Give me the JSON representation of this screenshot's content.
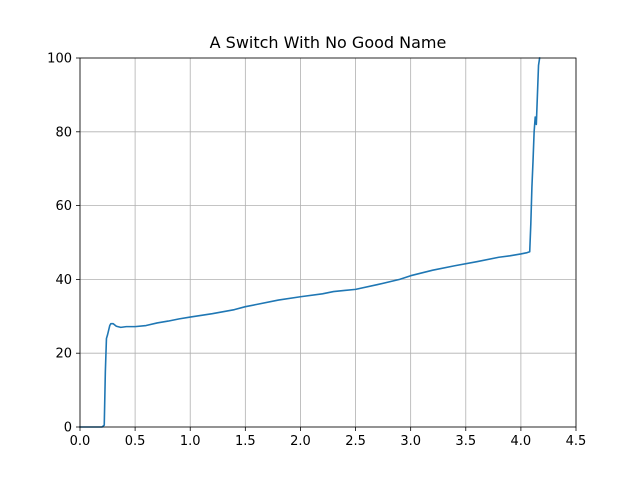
{
  "chart_data": {
    "type": "line",
    "title": "A Switch With No Good Name",
    "xlabel": "",
    "ylabel": "",
    "xlim": [
      0.0,
      4.5
    ],
    "ylim": [
      0,
      100
    ],
    "grid": true,
    "x_ticks": [
      "0.0",
      "0.5",
      "1.0",
      "1.5",
      "2.0",
      "2.5",
      "3.0",
      "3.5",
      "4.0",
      "4.5"
    ],
    "y_ticks": [
      "0",
      "20",
      "40",
      "60",
      "80",
      "100"
    ],
    "colors": {
      "series": "#1f77b4",
      "grid": "#b0b0b0"
    },
    "series": [
      {
        "x": [
          0.0,
          0.1,
          0.2,
          0.22,
          0.23,
          0.24,
          0.25,
          0.27,
          0.28,
          0.3,
          0.33,
          0.37,
          0.42,
          0.5,
          0.6,
          0.7,
          0.8,
          0.9,
          1.0,
          1.2,
          1.4,
          1.5,
          1.6,
          1.8,
          2.0,
          2.2,
          2.3,
          2.4,
          2.5,
          2.7,
          2.9,
          3.0,
          3.2,
          3.4,
          3.6,
          3.8,
          3.9,
          4.0,
          4.05,
          4.08,
          4.09,
          4.1,
          4.11,
          4.12,
          4.13,
          4.14,
          4.15,
          4.16,
          4.17
        ],
        "y": [
          0.0,
          0.0,
          0.0,
          0.5,
          15.0,
          24.0,
          25.0,
          27.5,
          28.0,
          28.0,
          27.3,
          27.0,
          27.2,
          27.2,
          27.5,
          28.2,
          28.7,
          29.3,
          29.8,
          30.7,
          31.8,
          32.6,
          33.2,
          34.4,
          35.3,
          36.1,
          36.7,
          37.0,
          37.3,
          38.6,
          40.0,
          41.0,
          42.5,
          43.7,
          44.8,
          46.0,
          46.4,
          46.9,
          47.2,
          47.5,
          55.0,
          65.0,
          72.0,
          80.0,
          84.0,
          82.0,
          90.0,
          98.0,
          100.0
        ]
      }
    ]
  }
}
